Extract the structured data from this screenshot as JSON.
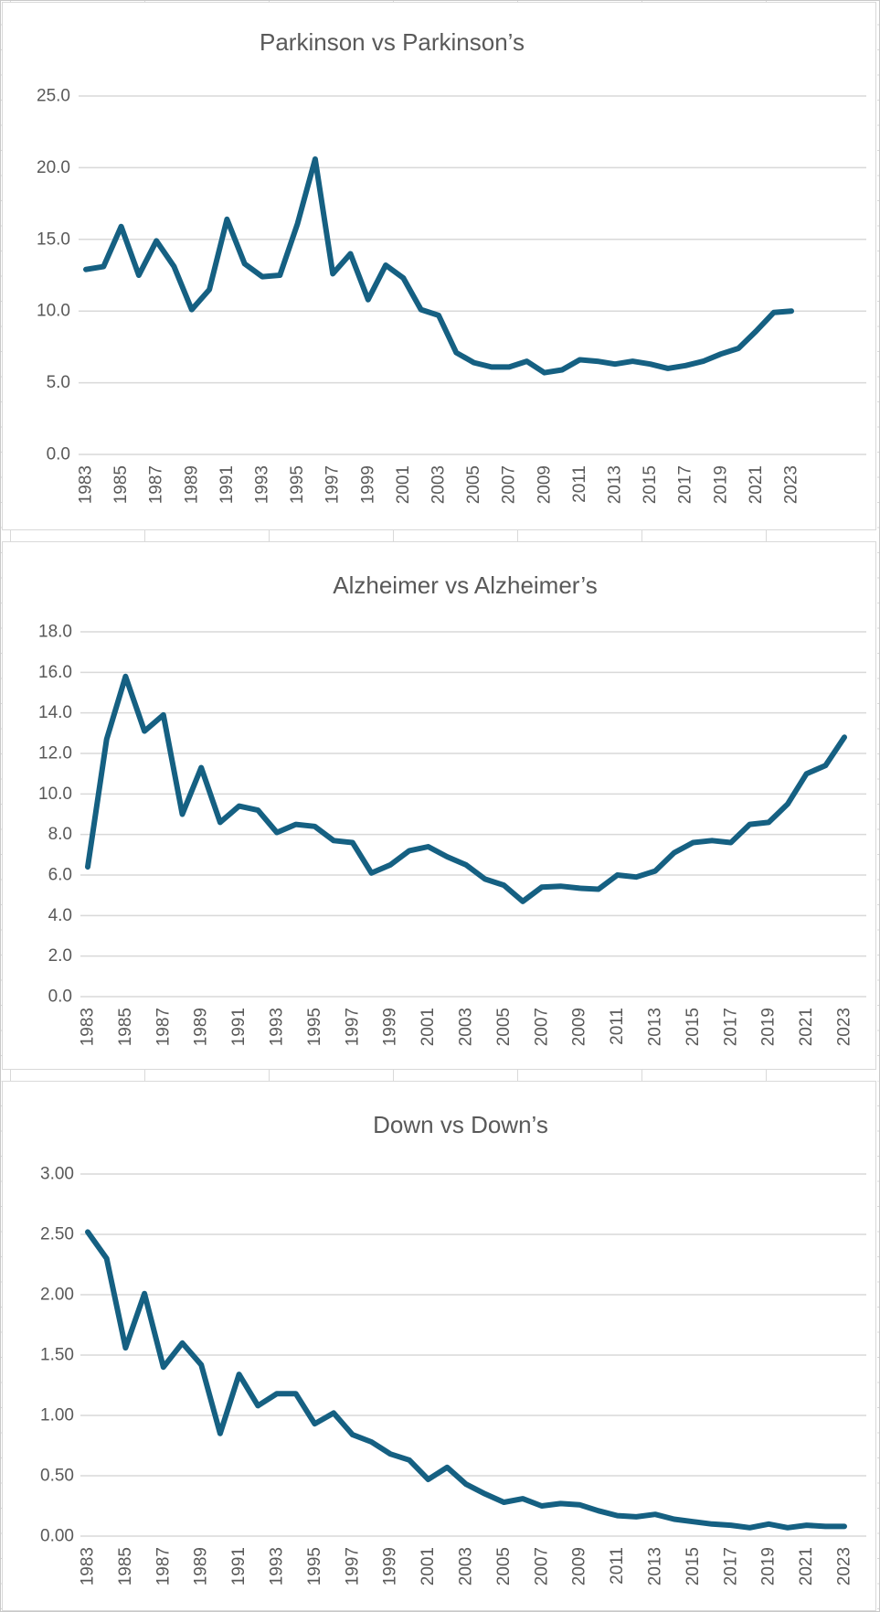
{
  "page": {
    "background": "#FFFFFF",
    "panel_border_color": "#D9D9D9",
    "gridline_color": "#D9D9D9",
    "line_color": "#156082",
    "text_color": "#595959",
    "worksheet_line_color": "#D9D9D9"
  },
  "chart_data": [
    {
      "type": "line",
      "title": "Parkinson vs Parkinson’s",
      "xlabel": "",
      "ylabel": "",
      "ylim": [
        0,
        25
      ],
      "grid": true,
      "legend": false,
      "y_tick_labels": [
        "0.0",
        "5.0",
        "10.0",
        "15.0",
        "20.0",
        "25.0"
      ],
      "x_tick_labels": [
        "1983",
        "1985",
        "1987",
        "1989",
        "1991",
        "1993",
        "1995",
        "1997",
        "1999",
        "2001",
        "2003",
        "2005",
        "2007",
        "2009",
        "2011",
        "2013",
        "2015",
        "2017",
        "2019",
        "2021",
        "2023"
      ],
      "x": [
        1983,
        1984,
        1985,
        1986,
        1987,
        1988,
        1989,
        1990,
        1991,
        1992,
        1993,
        1994,
        1995,
        1996,
        1997,
        1998,
        1999,
        2000,
        2001,
        2002,
        2003,
        2004,
        2005,
        2006,
        2007,
        2008,
        2009,
        2010,
        2011,
        2012,
        2013,
        2014,
        2015,
        2016,
        2017,
        2018,
        2019,
        2020,
        2021,
        2022,
        2023
      ],
      "values": [
        12.9,
        13.1,
        15.9,
        12.5,
        14.9,
        13.1,
        10.1,
        11.5,
        16.4,
        13.3,
        12.4,
        12.5,
        16.1,
        20.6,
        12.6,
        14.0,
        10.8,
        13.2,
        12.3,
        10.1,
        9.7,
        7.1,
        6.4,
        6.1,
        6.1,
        6.5,
        5.7,
        5.9,
        6.6,
        6.5,
        6.3,
        6.5,
        6.3,
        6.0,
        6.2,
        6.5,
        7.0,
        7.4,
        8.6,
        9.9,
        10.0
      ]
    },
    {
      "type": "line",
      "title": "Alzheimer vs Alzheimer’s",
      "xlabel": "",
      "ylabel": "",
      "ylim": [
        0,
        18
      ],
      "grid": true,
      "legend": false,
      "y_tick_labels": [
        "0.0",
        "2.0",
        "4.0",
        "6.0",
        "8.0",
        "10.0",
        "12.0",
        "14.0",
        "16.0",
        "18.0"
      ],
      "x_tick_labels": [
        "1983",
        "1985",
        "1987",
        "1989",
        "1991",
        "1993",
        "1995",
        "1997",
        "1999",
        "2001",
        "2003",
        "2005",
        "2007",
        "2009",
        "2011",
        "2013",
        "2015",
        "2017",
        "2019",
        "2021",
        "2023"
      ],
      "x": [
        1983,
        1984,
        1985,
        1986,
        1987,
        1988,
        1989,
        1990,
        1991,
        1992,
        1993,
        1994,
        1995,
        1996,
        1997,
        1998,
        1999,
        2000,
        2001,
        2002,
        2003,
        2004,
        2005,
        2006,
        2007,
        2008,
        2009,
        2010,
        2011,
        2012,
        2013,
        2014,
        2015,
        2016,
        2017,
        2018,
        2019,
        2020,
        2021,
        2022,
        2023
      ],
      "values": [
        6.4,
        12.7,
        15.8,
        13.1,
        13.9,
        9.0,
        11.3,
        8.6,
        9.4,
        9.2,
        8.1,
        8.5,
        8.4,
        7.7,
        7.6,
        6.1,
        6.5,
        7.2,
        7.4,
        6.9,
        6.5,
        5.8,
        5.5,
        4.7,
        5.4,
        5.45,
        5.35,
        5.3,
        6.0,
        5.9,
        6.2,
        7.1,
        7.6,
        7.7,
        7.6,
        8.5,
        8.6,
        9.5,
        11.0,
        11.4,
        12.8
      ]
    },
    {
      "type": "line",
      "title": "Down vs Down’s",
      "xlabel": "",
      "ylabel": "",
      "ylim": [
        0,
        3
      ],
      "grid": true,
      "legend": false,
      "y_tick_labels": [
        "0.00",
        "0.50",
        "1.00",
        "1.50",
        "2.00",
        "2.50",
        "3.00"
      ],
      "x_tick_labels": [
        "1983",
        "1985",
        "1987",
        "1989",
        "1991",
        "1993",
        "1995",
        "1997",
        "1999",
        "2001",
        "2003",
        "2005",
        "2007",
        "2009",
        "2011",
        "2013",
        "2015",
        "2017",
        "2019",
        "2021",
        "2023"
      ],
      "x": [
        1983,
        1984,
        1985,
        1986,
        1987,
        1988,
        1989,
        1990,
        1991,
        1992,
        1993,
        1994,
        1995,
        1996,
        1997,
        1998,
        1999,
        2000,
        2001,
        2002,
        2003,
        2004,
        2005,
        2006,
        2007,
        2008,
        2009,
        2010,
        2011,
        2012,
        2013,
        2014,
        2015,
        2016,
        2017,
        2018,
        2019,
        2020,
        2021,
        2022,
        2023
      ],
      "values": [
        2.52,
        2.3,
        1.56,
        2.01,
        1.4,
        1.6,
        1.42,
        0.85,
        1.34,
        1.08,
        1.18,
        1.18,
        0.93,
        1.02,
        0.84,
        0.78,
        0.68,
        0.63,
        0.47,
        0.57,
        0.43,
        0.35,
        0.28,
        0.31,
        0.25,
        0.27,
        0.26,
        0.21,
        0.17,
        0.16,
        0.18,
        0.14,
        0.12,
        0.1,
        0.09,
        0.07,
        0.1,
        0.07,
        0.09,
        0.08,
        0.08
      ]
    }
  ]
}
